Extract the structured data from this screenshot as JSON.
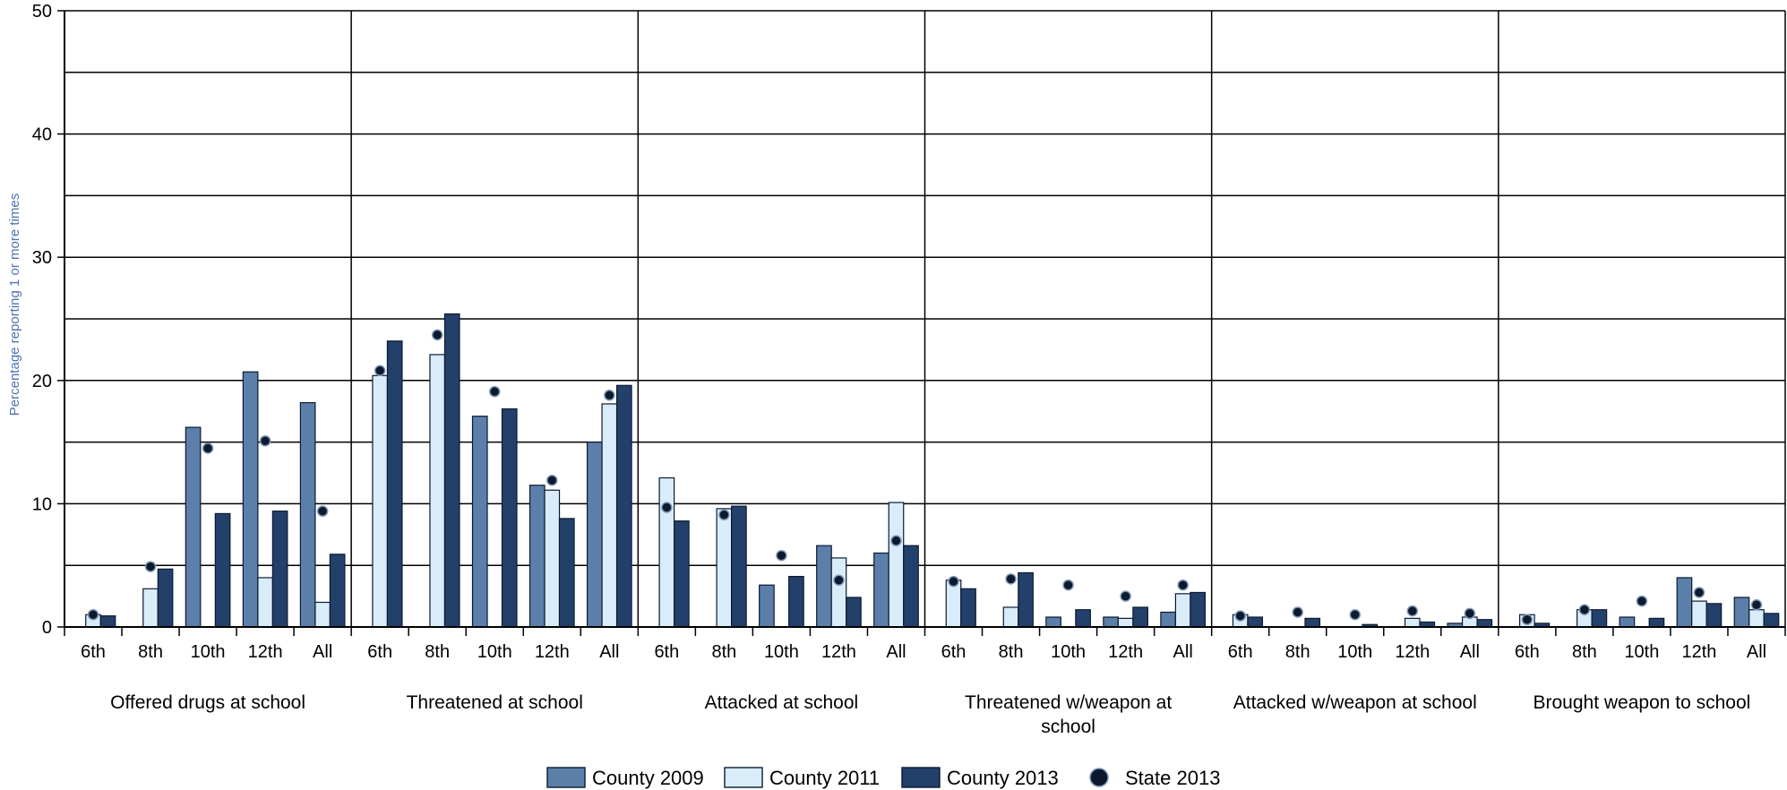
{
  "chart_data": {
    "type": "bar",
    "title": "",
    "xlabel": "",
    "ylabel": "Percentage reporting 1 or more times",
    "ylim": [
      0,
      50
    ],
    "yticks": [
      0,
      10,
      20,
      30,
      40,
      50
    ],
    "grid": true,
    "legend_position": "bottom",
    "subcategories": [
      "6th",
      "8th",
      "10th",
      "12th",
      "All"
    ],
    "groups": [
      {
        "label": "Offered drugs at school",
        "lines": [
          "Offered drugs at school"
        ]
      },
      {
        "label": "Threatened at school",
        "lines": [
          "Threatened at school"
        ]
      },
      {
        "label": "Attacked at school",
        "lines": [
          "Attacked at school"
        ]
      },
      {
        "label": "Threatened w/weapon at school",
        "lines": [
          "Threatened w/weapon at",
          "school"
        ]
      },
      {
        "label": "Attacked w/weapon at school",
        "lines": [
          "Attacked w/weapon at school"
        ]
      },
      {
        "label": "Brought weapon to school",
        "lines": [
          "Brought weapon to school"
        ]
      }
    ],
    "series": [
      {
        "name": "County 2009",
        "kind": "bar",
        "color": "#5b7fa8",
        "values": [
          [
            0,
            0,
            16.2,
            20.7,
            18.2
          ],
          [
            0,
            0,
            17.1,
            11.5,
            15.0
          ],
          [
            0,
            0,
            3.4,
            6.6,
            6.0
          ],
          [
            0,
            0,
            0.8,
            0.8,
            1.2
          ],
          [
            0,
            0,
            0,
            0,
            0.3
          ],
          [
            0,
            0,
            0.8,
            4.0,
            2.4
          ]
        ]
      },
      {
        "name": "County 2011",
        "kind": "bar",
        "color": "#d9ecfa",
        "values": [
          [
            1.0,
            3.1,
            0,
            4.0,
            2.0
          ],
          [
            20.4,
            22.1,
            0,
            11.1,
            18.1
          ],
          [
            12.1,
            9.6,
            0,
            5.6,
            10.1
          ],
          [
            3.8,
            1.6,
            0,
            0.7,
            2.7
          ],
          [
            1.0,
            0,
            0,
            0.7,
            0.8
          ],
          [
            1.0,
            1.4,
            0,
            2.1,
            1.4
          ]
        ]
      },
      {
        "name": "County 2013",
        "kind": "bar",
        "color": "#23406b",
        "values": [
          [
            0.9,
            4.7,
            9.2,
            9.4,
            5.9
          ],
          [
            23.2,
            25.4,
            17.7,
            8.8,
            19.6
          ],
          [
            8.6,
            9.8,
            4.1,
            2.4,
            6.6
          ],
          [
            3.1,
            4.4,
            1.4,
            1.6,
            2.8
          ],
          [
            0.8,
            0.7,
            0.2,
            0.4,
            0.6
          ],
          [
            0.3,
            1.4,
            0.7,
            1.9,
            1.1
          ]
        ]
      },
      {
        "name": "State 2013",
        "kind": "point",
        "color": "#0d1a2e",
        "values": [
          [
            1.0,
            4.9,
            14.5,
            15.1,
            9.4
          ],
          [
            20.8,
            23.7,
            19.1,
            11.9,
            18.8
          ],
          [
            9.7,
            9.1,
            5.8,
            3.8,
            7.0
          ],
          [
            3.7,
            3.9,
            3.4,
            2.5,
            3.4
          ],
          [
            0.9,
            1.2,
            1.0,
            1.3,
            1.1
          ],
          [
            0.6,
            1.4,
            2.1,
            2.8,
            1.8
          ]
        ]
      }
    ]
  }
}
